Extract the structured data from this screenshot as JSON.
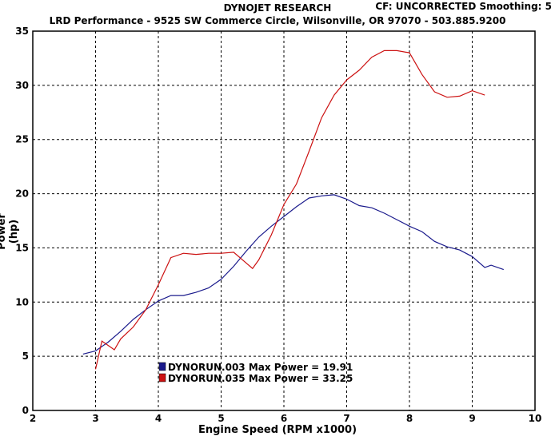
{
  "header": {
    "title": "DYNOJET RESEARCH",
    "correction": "CF: UNCORRECTED  Smoothing: 5",
    "subtitle": "LRD Performance - 9525 SW Commerce Circle, Wilsonville, OR 97070 - 503.885.9200"
  },
  "chart_data": {
    "type": "line",
    "xlabel": "Engine Speed (RPM x1000)",
    "ylabel": "Power (hp)",
    "xlim": [
      2,
      10
    ],
    "ylim": [
      0,
      35
    ],
    "xticks": [
      "2",
      "3",
      "4",
      "5",
      "6",
      "7",
      "8",
      "9",
      "10"
    ],
    "yticks": [
      "0",
      "5",
      "10",
      "15",
      "20",
      "25",
      "30",
      "35"
    ],
    "grid": true,
    "legend_position": "bottom-left",
    "series": [
      {
        "name": "DYNORUN.003 Max Power = 19.91",
        "color": "#1a1a8c",
        "x": [
          2.8,
          3.0,
          3.2,
          3.4,
          3.6,
          3.8,
          4.0,
          4.2,
          4.4,
          4.6,
          4.8,
          5.0,
          5.2,
          5.4,
          5.6,
          5.8,
          6.0,
          6.2,
          6.4,
          6.6,
          6.8,
          7.0,
          7.2,
          7.4,
          7.6,
          7.8,
          8.0,
          8.2,
          8.4,
          8.6,
          8.8,
          9.0,
          9.2,
          9.3,
          9.5
        ],
        "y": [
          5.2,
          5.5,
          6.3,
          7.3,
          8.4,
          9.3,
          10.1,
          10.6,
          10.6,
          10.9,
          11.3,
          12.1,
          13.3,
          14.7,
          16.0,
          17.0,
          17.9,
          18.8,
          19.6,
          19.8,
          19.9,
          19.5,
          18.9,
          18.7,
          18.2,
          17.6,
          17.0,
          16.5,
          15.6,
          15.1,
          14.8,
          14.2,
          13.2,
          13.4,
          13.0
        ]
      },
      {
        "name": "DYNORUN.035 Max Power = 33.25",
        "color": "#cc1111",
        "x": [
          3.0,
          3.1,
          3.3,
          3.4,
          3.6,
          3.8,
          4.0,
          4.2,
          4.4,
          4.6,
          4.8,
          5.0,
          5.2,
          5.4,
          5.5,
          5.6,
          5.8,
          6.0,
          6.2,
          6.4,
          6.6,
          6.8,
          7.0,
          7.2,
          7.4,
          7.6,
          7.8,
          8.0,
          8.2,
          8.4,
          8.6,
          8.8,
          9.0,
          9.2
        ],
        "y": [
          3.8,
          6.4,
          5.6,
          6.6,
          7.7,
          9.3,
          11.6,
          14.1,
          14.5,
          14.4,
          14.5,
          14.5,
          14.6,
          13.6,
          13.1,
          13.9,
          16.2,
          19.0,
          20.9,
          23.9,
          27.0,
          29.1,
          30.5,
          31.4,
          32.6,
          33.2,
          33.2,
          33.0,
          31.0,
          29.4,
          28.9,
          29.0,
          29.5,
          29.1
        ]
      }
    ]
  }
}
